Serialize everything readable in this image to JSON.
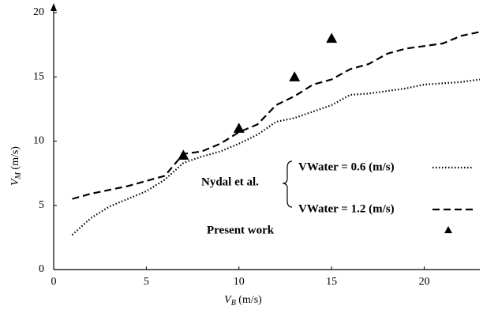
{
  "chart_data": {
    "type": "line",
    "x_label": {
      "symbol": "V",
      "subscript": "B",
      "unit": " (m/s)"
    },
    "y_label": {
      "symbol": "V",
      "subscript": "M",
      "unit": " (m/s)"
    },
    "xlim": [
      0,
      23
    ],
    "ylim": [
      0,
      20
    ],
    "xticks": [
      0,
      5,
      10,
      15,
      20
    ],
    "yticks": [
      0,
      5,
      10,
      15,
      20
    ],
    "legend_group": "Nydal et al.",
    "series": [
      {
        "name": "VWater = 0.6 (m/s)",
        "color": "#000000",
        "style": "dotted",
        "x": [
          1,
          2,
          3,
          4,
          5,
          6,
          7,
          8,
          9,
          10,
          11,
          12,
          13,
          14,
          15,
          16,
          17,
          18,
          19,
          20,
          21,
          22,
          23
        ],
        "values": [
          2.7,
          4.0,
          4.9,
          5.5,
          6.1,
          7.0,
          8.3,
          8.8,
          9.2,
          9.8,
          10.5,
          11.5,
          11.8,
          12.3,
          12.8,
          13.6,
          13.7,
          13.9,
          14.1,
          14.4,
          14.5,
          14.6,
          14.8
        ]
      },
      {
        "name": "VWater = 1.2 (m/s)",
        "color": "#000000",
        "style": "dashed",
        "x": [
          1,
          2,
          3,
          4,
          5,
          6,
          7,
          8,
          9,
          10,
          11,
          12,
          13,
          14,
          15,
          16,
          17,
          18,
          19,
          20,
          21,
          22,
          23
        ],
        "values": [
          5.5,
          5.9,
          6.2,
          6.5,
          6.9,
          7.3,
          9.0,
          9.2,
          9.8,
          10.7,
          11.3,
          12.8,
          13.5,
          14.4,
          14.8,
          15.6,
          16.0,
          16.8,
          17.2,
          17.4,
          17.6,
          18.2,
          18.5
        ]
      },
      {
        "name": "Present work",
        "color": "#000000",
        "style": "marker",
        "x": [
          7,
          10,
          13,
          15
        ],
        "values": [
          8.9,
          11.0,
          15.0,
          18.0
        ]
      }
    ]
  }
}
